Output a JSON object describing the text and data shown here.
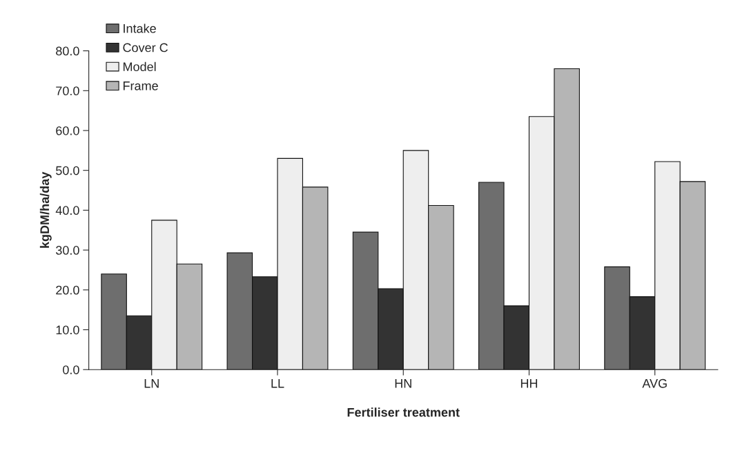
{
  "chart_data": {
    "type": "bar",
    "xlabel": "Fertiliser treatment",
    "ylabel": "kgDM/ha/day",
    "categories": [
      "LN",
      "LL",
      "HN",
      "HH",
      "AVG"
    ],
    "series": [
      {
        "name": "Intake",
        "color": "#6e6e6e",
        "values": [
          24.0,
          29.3,
          34.5,
          47.0,
          25.8
        ]
      },
      {
        "name": "Cover C",
        "color": "#333333",
        "values": [
          13.5,
          23.3,
          20.3,
          16.0,
          18.3
        ]
      },
      {
        "name": "Model",
        "color": "#eeeeee",
        "values": [
          37.5,
          53.0,
          55.0,
          63.5,
          52.2
        ]
      },
      {
        "name": "Frame",
        "color": "#b5b5b5",
        "values": [
          26.5,
          45.8,
          41.2,
          75.5,
          47.2
        ]
      }
    ],
    "ylim": [
      0,
      80
    ],
    "yticks": [
      {
        "value": 0,
        "label": "0.0"
      },
      {
        "value": 10,
        "label": "10.0"
      },
      {
        "value": 20,
        "label": "20.0"
      },
      {
        "value": 30,
        "label": "30.0"
      },
      {
        "value": 40,
        "label": "40.0"
      },
      {
        "value": 50,
        "label": "50.0"
      },
      {
        "value": 60,
        "label": "60.0"
      },
      {
        "value": 70,
        "label": "70.0"
      },
      {
        "value": 80,
        "label": "80.0"
      }
    ],
    "grid": false,
    "legend": "top left"
  }
}
